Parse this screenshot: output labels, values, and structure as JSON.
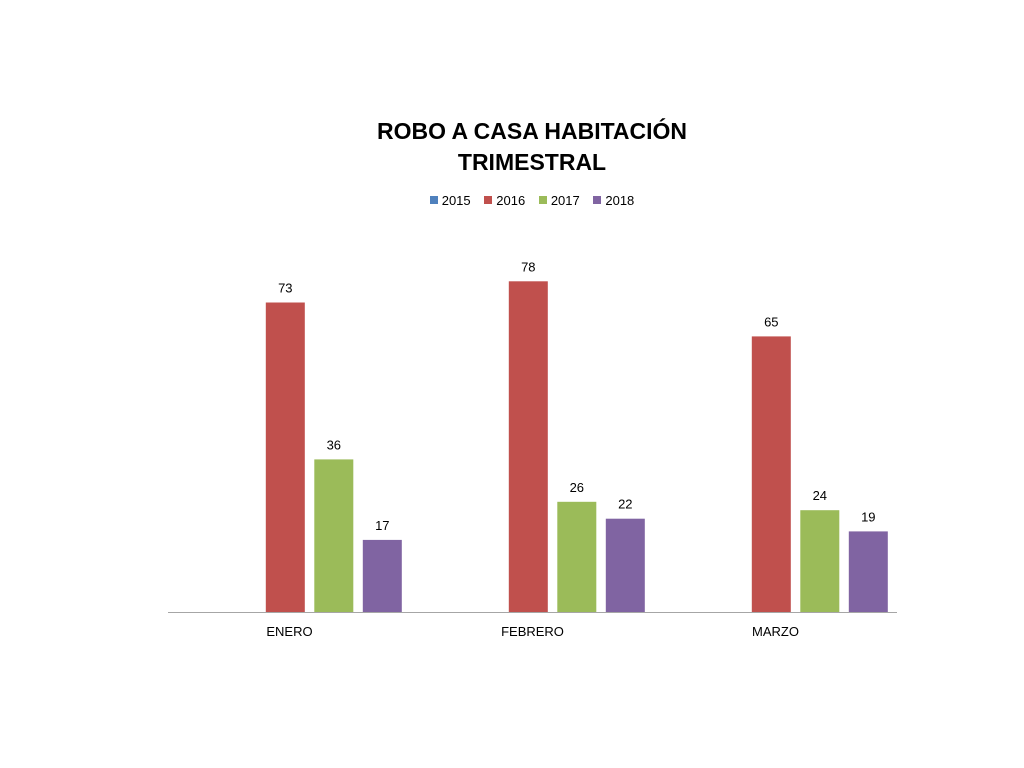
{
  "chart_data": {
    "type": "bar",
    "title_lines": [
      "ROBO A CASA HABITACIÓN",
      "TRIMESTRAL"
    ],
    "categories": [
      "ENERO",
      "FEBRERO",
      "MARZO"
    ],
    "series": [
      {
        "name": "2015",
        "color": "#4F81BD",
        "values": [
          0,
          0,
          0
        ]
      },
      {
        "name": "2016",
        "color": "#C0504D",
        "values": [
          73,
          78,
          65
        ]
      },
      {
        "name": "2017",
        "color": "#9BBB59",
        "values": [
          36,
          26,
          24
        ]
      },
      {
        "name": "2018",
        "color": "#8064A2",
        "values": [
          17,
          22,
          19
        ]
      }
    ],
    "data_labels": true,
    "legend_position": "top",
    "ylim": [
      0,
      80
    ],
    "grid": false,
    "axis_color": "#A6A6A6"
  }
}
